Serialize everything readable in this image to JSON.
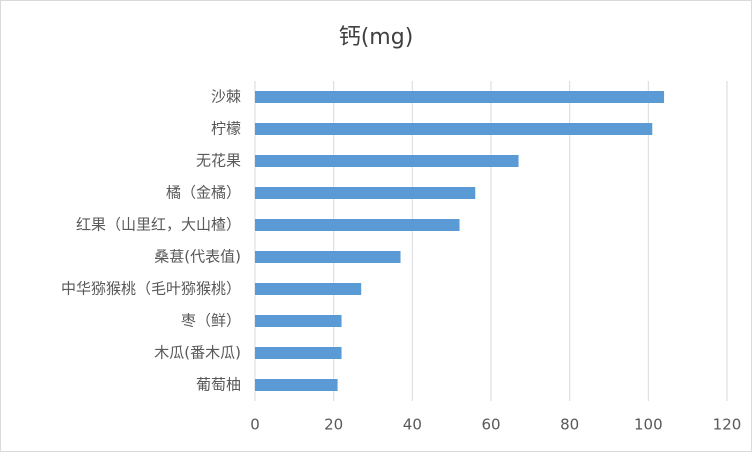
{
  "chart_data": {
    "type": "bar",
    "orientation": "horizontal",
    "title": "钙(mg)",
    "categories": [
      "沙棘",
      "柠檬",
      "无花果",
      "橘（金橘）",
      "红果（山里红，大山楂）",
      "桑葚(代表值)",
      "中华猕猴桃（毛叶猕猴桃）",
      "枣（鲜）",
      "木瓜(番木瓜)",
      "葡萄柚"
    ],
    "values": [
      104,
      101,
      67,
      56,
      52,
      37,
      27,
      22,
      22,
      21
    ],
    "color": "#5b9bd5",
    "xlim": [
      0,
      120
    ],
    "xticks": [
      0,
      20,
      40,
      60,
      80,
      100,
      120
    ],
    "grid": true
  }
}
